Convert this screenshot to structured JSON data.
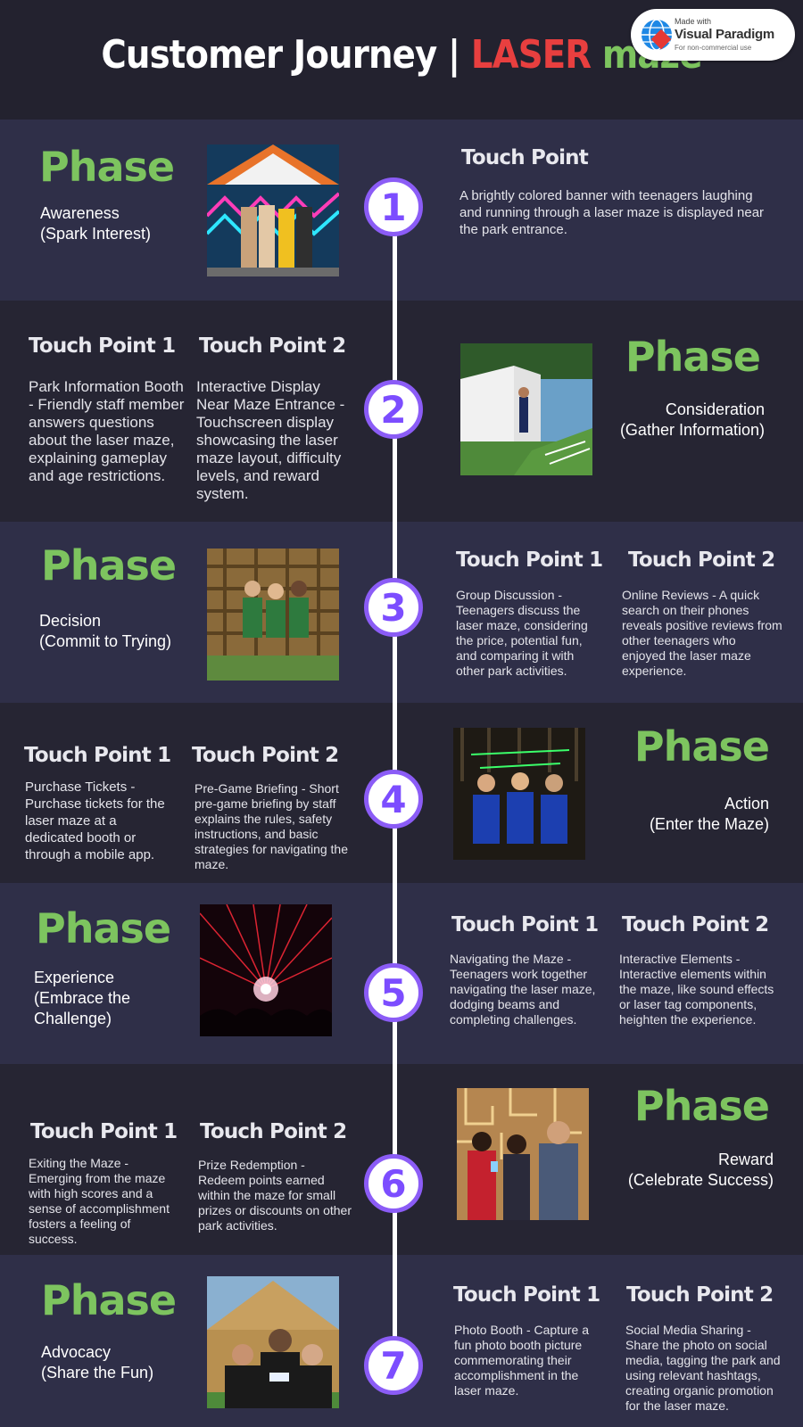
{
  "title": {
    "part1": "Customer Journey | ",
    "part2": "LASER",
    "part3": " maze"
  },
  "watermark": {
    "made_with": "Made with",
    "brand": "Visual Paradigm",
    "note": "For non-commercial use"
  },
  "colors": {
    "background": "#23222f",
    "band_light": "#2f2f48",
    "band_dark": "#262533",
    "phase_green": "#7dc45f",
    "accent_red": "#e83f3f",
    "step_purple": "#8b5cf6"
  },
  "sections": [
    {
      "step": "1",
      "phase_label": "Phase",
      "phase_name": "Awareness",
      "phase_desc": "(Spark Interest)",
      "tp_single_title": "Touch Point",
      "tp_single_text": "A brightly colored banner with teenagers laughing and running through a laser maze is displayed near the park entrance.",
      "image": "teens-at-colorful-banner-photo"
    },
    {
      "step": "2",
      "phase_label": "Phase",
      "phase_name": "Consideration",
      "phase_desc": "(Gather Information)",
      "tp1_title": "Touch Point 1",
      "tp1_text": "Park Information Booth - Friendly staff member answers questions about the laser maze, explaining gameplay and age restrictions.",
      "tp2_title": "Touch Point 2",
      "tp2_text": "Interactive Display Near Maze Entrance - Touchscreen display showcasing the laser maze layout, difficulty levels, and reward system.",
      "image": "staff-at-info-tent-photo"
    },
    {
      "step": "3",
      "phase_label": "Phase",
      "phase_name": "Decision",
      "phase_desc": "(Commit to Trying)",
      "tp1_title": "Touch Point 1",
      "tp1_text": "Group Discussion - Teenagers discuss the laser maze, considering the price, potential fun, and comparing it with other park activities.",
      "tp2_title": "Touch Point 2",
      "tp2_text": "Online Reviews - A quick search on their phones reveals positive reviews from other teenagers who enjoyed the laser maze experience.",
      "image": "three-teens-at-maze-wall-photo"
    },
    {
      "step": "4",
      "phase_label": "Phase",
      "phase_name": "Action",
      "phase_desc": "(Enter the Maze)",
      "tp1_title": "Touch Point 1",
      "tp1_text": "Purchase Tickets - Purchase tickets for the laser maze at a dedicated booth or through a mobile app.",
      "tp2_title": "Touch Point 2",
      "tp2_text": "Pre-Game Briefing - Short pre-game briefing by staff explains the rules, safety instructions, and basic strategies for navigating the maze.",
      "image": "teens-in-vests-photo"
    },
    {
      "step": "5",
      "phase_label": "Phase",
      "phase_name": "Experience",
      "phase_desc": "(Embrace the Challenge)",
      "tp1_title": "Touch Point 1",
      "tp1_text": "Navigating the Maze - Teenagers work together navigating the laser maze, dodging beams and completing challenges.",
      "tp2_title": "Touch Point 2",
      "tp2_text": "Interactive Elements - Interactive elements within the maze, like sound effects or laser tag components, heighten the experience.",
      "image": "red-laser-beams-photo"
    },
    {
      "step": "6",
      "phase_label": "Phase",
      "phase_name": "Reward",
      "phase_desc": "(Celebrate Success)",
      "tp1_title": "Touch Point 1",
      "tp1_text": "Exiting the Maze - Emerging from the maze with high scores and a sense of accomplishment fosters a feeling of success.",
      "tp2_title": "Touch Point 2",
      "tp2_text": "Prize Redemption - Redeem points earned within the maze for small prizes or discounts on other park activities.",
      "image": "teens-checking-phones-photo"
    },
    {
      "step": "7",
      "phase_label": "Phase",
      "phase_name": "Advocacy",
      "phase_desc": "(Share the Fun)",
      "tp1_title": "Touch Point 1",
      "tp1_text": "Photo Booth - Capture a fun photo booth picture commemorating their accomplishment in the laser maze.",
      "tp2_title": "Touch Point 2",
      "tp2_text": "Social Media Sharing - Share the photo on social media, tagging the park and using relevant hashtags, creating organic promotion for the laser maze.",
      "image": "group-selfie-photo"
    }
  ]
}
